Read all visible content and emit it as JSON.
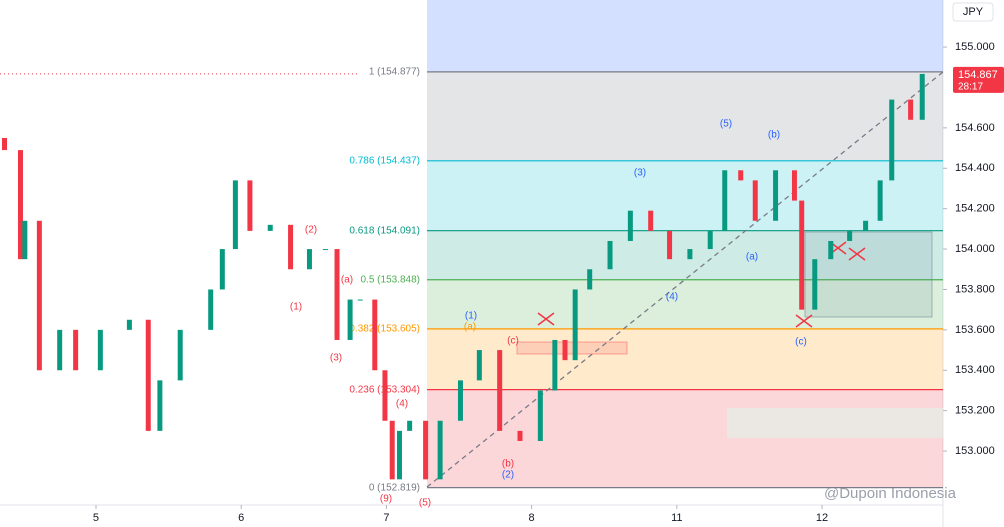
{
  "chart_data": {
    "type": "candlestick",
    "currency": "JPY",
    "countdown": "28:17",
    "watermark": "@Dupoin Indonesia",
    "up_color": "#089981",
    "down_color": "#f23645",
    "top_zone_color": "#2962ff",
    "xlim": [
      -0.661,
      5.833
    ],
    "ylim": [
      152.733,
      155.233
    ],
    "xticks": [
      {
        "value": 0,
        "label": "5"
      },
      {
        "value": 1,
        "label": "6"
      },
      {
        "value": 2,
        "label": "7"
      },
      {
        "value": 3,
        "label": "8"
      },
      {
        "value": 4,
        "label": "11"
      },
      {
        "value": 5,
        "label": "12"
      }
    ],
    "yticks": [
      {
        "value": 153,
        "label": "153.000"
      },
      {
        "value": 153.2,
        "label": "153.200"
      },
      {
        "value": 153.4,
        "label": "153.400"
      },
      {
        "value": 153.6,
        "label": "153.600"
      },
      {
        "value": 153.8,
        "label": "153.800"
      },
      {
        "value": 154,
        "label": "154.000"
      },
      {
        "value": 154.2,
        "label": "154.200"
      },
      {
        "value": 154.4,
        "label": "154.400"
      },
      {
        "value": 154.6,
        "label": "154.600"
      },
      {
        "value": 155,
        "label": "155.000"
      }
    ],
    "fib_levels": [
      {
        "label": "1 (154.877)",
        "value": 154.877,
        "color": "#787b86"
      },
      {
        "label": "0.786 (154.437)",
        "value": 154.437,
        "color": "#00bcd4"
      },
      {
        "label": "0.618 (154.091)",
        "value": 154.091,
        "color": "#089981"
      },
      {
        "label": "0.5 (153.848)",
        "value": 153.848,
        "color": "#4caf50"
      },
      {
        "label": "0.382 (153.605)",
        "value": 153.605,
        "color": "#ff9800"
      },
      {
        "label": "0.236 (153.304)",
        "value": 153.304,
        "color": "#f23645"
      },
      {
        "label": "0 (152.819)",
        "value": 152.819,
        "color": "#787b86"
      }
    ],
    "annotations": [
      "(2)",
      "(1)",
      "(3)",
      "(4)",
      "(5)",
      "(9)",
      "(a)",
      "(b)",
      "(c)",
      "(a)",
      "(1)",
      "(2)",
      "(3)",
      "(4)",
      "(5)",
      "(a)",
      "(b)",
      "(c)"
    ],
    "x": [
      -0.63,
      -0.52,
      -0.49,
      -0.39,
      -0.25,
      -0.14,
      0.03,
      0.23,
      0.36,
      0.44,
      0.58,
      0.79,
      0.87,
      0.96,
      1.06,
      1.2,
      1.34,
      1.47,
      1.58,
      1.66,
      1.75,
      1.82,
      1.92,
      1.99,
      2.04,
      2.09,
      2.16,
      2.27,
      2.37,
      2.51,
      2.64,
      2.78,
      2.92,
      3.06,
      3.16,
      3.23,
      3.3,
      3.4,
      3.54,
      3.68,
      3.82,
      3.95,
      4.09,
      4.23,
      4.33,
      4.44,
      4.54,
      4.68,
      4.81,
      4.86,
      4.95,
      5.06,
      5.19,
      5.3,
      5.4,
      5.48,
      5.61,
      5.69
    ],
    "open": [
      154.55,
      154.49,
      153.95,
      154.14,
      153.4,
      153.6,
      153.4,
      153.6,
      153.65,
      153.1,
      153.35,
      153.6,
      153.8,
      154.0,
      154.34,
      154.09,
      154.12,
      153.9,
      154.0,
      154.0,
      153.55,
      153.75,
      153.75,
      153.4,
      153.15,
      152.86,
      153.1,
      153.15,
      152.86,
      153.15,
      153.35,
      153.5,
      153.1,
      153.05,
      153.3,
      153.55,
      153.45,
      153.8,
      153.9,
      154.04,
      154.19,
      154.09,
      153.95,
      154.0,
      154.09,
      154.39,
      154.34,
      154.14,
      154.39,
      154.24,
      153.7,
      153.95,
      154.04,
      154.09,
      154.14,
      154.34,
      154.74,
      154.64
    ],
    "close": [
      154.49,
      153.95,
      154.14,
      153.4,
      153.6,
      153.4,
      153.6,
      153.65,
      153.1,
      153.35,
      153.6,
      153.8,
      154.0,
      154.34,
      154.09,
      154.12,
      153.9,
      154.0,
      154.0,
      153.55,
      153.75,
      153.75,
      153.4,
      153.15,
      152.86,
      153.1,
      153.15,
      152.86,
      153.15,
      153.35,
      153.5,
      153.1,
      153.05,
      153.3,
      153.55,
      153.45,
      153.8,
      153.9,
      154.04,
      154.19,
      154.09,
      153.95,
      154.0,
      154.09,
      154.39,
      154.34,
      154.14,
      154.39,
      154.24,
      153.7,
      153.95,
      154.04,
      154.09,
      154.14,
      154.34,
      154.74,
      154.64,
      154.867
    ]
  }
}
